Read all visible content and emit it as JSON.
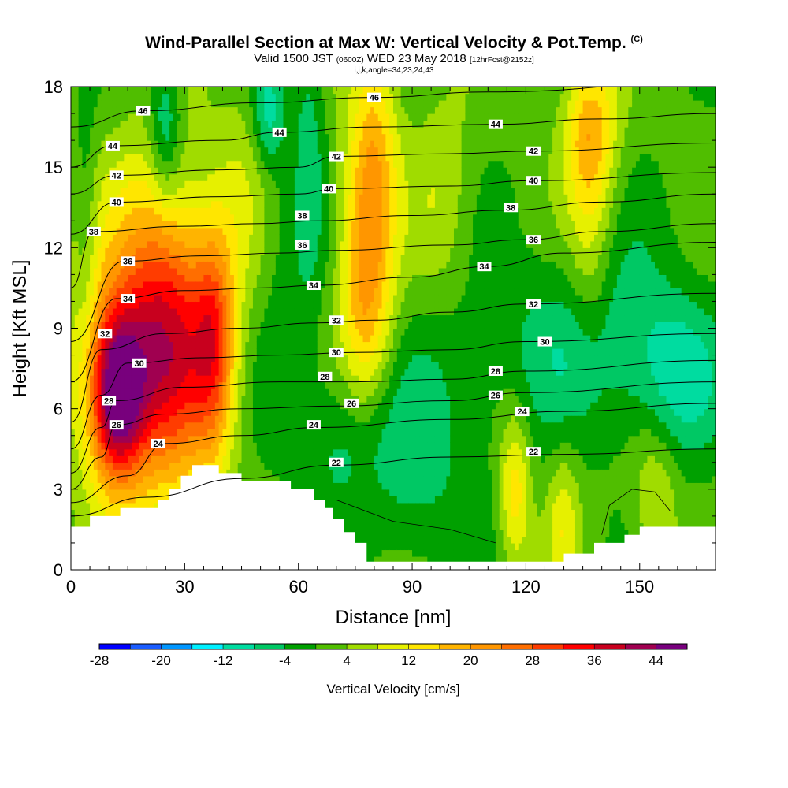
{
  "title": {
    "main": "Wind-Parallel Section at Max W: Vertical Velocity & Pot.Temp.",
    "copyright": "(C)",
    "valid_prefix": "Valid 1500 JST",
    "utc": "(0600Z)",
    "valid_date": "WED 23 May 2018",
    "forecast": "[12hrFcst@2152z]",
    "indices": "i,j,k,angle=34,23,24,43"
  },
  "chart_data": {
    "type": "heatmap",
    "xlabel": "Distance [nm]",
    "ylabel": "Height [Kft MSL]",
    "xlim": [
      0,
      170
    ],
    "ylim": [
      0,
      18
    ],
    "xticks": [
      0,
      30,
      60,
      90,
      120,
      150
    ],
    "yticks": [
      0,
      3,
      6,
      9,
      12,
      15,
      18
    ],
    "colorbar": {
      "label": "Vertical Velocity [cm/s]",
      "levels": [
        -28,
        -24,
        -20,
        -16,
        -12,
        -8,
        -4,
        0,
        4,
        8,
        12,
        16,
        20,
        24,
        28,
        32,
        36,
        40,
        44,
        48
      ],
      "tick_labels": [
        "-28",
        "-20",
        "-12",
        "-4",
        "4",
        "12",
        "20",
        "28",
        "36",
        "44"
      ],
      "colors": [
        "#0000ff",
        "#1a5cff",
        "#0096ff",
        "#00f0ff",
        "#00dca0",
        "#00c864",
        "#00a000",
        "#50be00",
        "#a0dc00",
        "#e6f000",
        "#ffe600",
        "#ffb400",
        "#ff9600",
        "#ff6e00",
        "#ff3c00",
        "#ff0000",
        "#c8001e",
        "#a00050",
        "#78007d"
      ]
    },
    "terrain": [
      [
        0,
        1.6
      ],
      [
        5,
        1.6
      ],
      [
        5,
        2.0
      ],
      [
        13,
        2.0
      ],
      [
        13,
        2.3
      ],
      [
        23,
        2.3
      ],
      [
        23,
        2.6
      ],
      [
        26,
        2.6
      ],
      [
        26,
        3.0
      ],
      [
        29,
        3.0
      ],
      [
        29,
        3.5
      ],
      [
        32,
        3.5
      ],
      [
        32,
        3.9
      ],
      [
        39,
        3.9
      ],
      [
        39,
        3.6
      ],
      [
        45,
        3.6
      ],
      [
        45,
        3.3
      ],
      [
        58,
        3.3
      ],
      [
        58,
        3.0
      ],
      [
        64,
        3.0
      ],
      [
        64,
        2.6
      ],
      [
        67,
        2.6
      ],
      [
        67,
        2.3
      ],
      [
        69,
        2.3
      ],
      [
        69,
        1.9
      ],
      [
        72,
        1.9
      ],
      [
        72,
        1.4
      ],
      [
        75,
        1.4
      ],
      [
        75,
        1.0
      ],
      [
        78,
        1.0
      ],
      [
        78,
        0.3
      ],
      [
        130,
        0.3
      ],
      [
        130,
        0.6
      ],
      [
        138,
        0.6
      ],
      [
        138,
        1.0
      ],
      [
        146,
        1.0
      ],
      [
        146,
        1.3
      ],
      [
        150,
        1.3
      ],
      [
        150,
        1.6
      ],
      [
        170,
        1.6
      ]
    ],
    "w_field": [
      {
        "x": 12,
        "y": 6.5,
        "w": 38,
        "sx": 5,
        "sy": 2.2
      },
      {
        "x": 17,
        "y": 8,
        "w": 16,
        "sx": 12,
        "sy": 4
      },
      {
        "x": 27,
        "y": 8,
        "w": 18,
        "sx": 8,
        "sy": 3.5
      },
      {
        "x": 38,
        "y": 8.5,
        "w": 22,
        "sx": 4,
        "sy": 3
      },
      {
        "x": 24,
        "y": 11,
        "w": 9,
        "sx": 8,
        "sy": 4
      },
      {
        "x": 78,
        "y": 11.5,
        "w": 22,
        "sx": 5,
        "sy": 4
      },
      {
        "x": 81,
        "y": 16.5,
        "w": 8,
        "sx": 4,
        "sy": 2.5
      },
      {
        "x": 137,
        "y": 16.5,
        "w": 16,
        "sx": 5,
        "sy": 2
      },
      {
        "x": 117,
        "y": 3,
        "w": 14,
        "sx": 3,
        "sy": 2
      },
      {
        "x": 130,
        "y": 1.8,
        "w": 9,
        "sx": 3,
        "sy": 2
      },
      {
        "x": 154,
        "y": 2.5,
        "w": 8,
        "sx": 4,
        "sy": 2
      },
      {
        "x": 98,
        "y": 14,
        "w": 6,
        "sx": 6,
        "sy": 3
      },
      {
        "x": 137,
        "y": 12,
        "w": 8,
        "sx": 4,
        "sy": 3
      },
      {
        "x": 45,
        "y": 14.5,
        "w": 5,
        "sx": 5,
        "sy": 3
      },
      {
        "x": 140,
        "y": 8.5,
        "w": -9,
        "sx": 18,
        "sy": 2.5
      },
      {
        "x": 160,
        "y": 7,
        "w": -8,
        "sx": 8,
        "sy": 2
      },
      {
        "x": 74,
        "y": 5,
        "w": -9,
        "sx": 9,
        "sy": 2
      },
      {
        "x": 100,
        "y": 6,
        "w": -5,
        "sx": 12,
        "sy": 3
      },
      {
        "x": 25,
        "y": 16.5,
        "w": -12,
        "sx": 3,
        "sy": 2
      },
      {
        "x": 52,
        "y": 17,
        "w": -10,
        "sx": 3,
        "sy": 1.5
      },
      {
        "x": 63,
        "y": 16,
        "w": -6,
        "sx": 3,
        "sy": 4
      },
      {
        "x": 4,
        "y": 13,
        "w": -5,
        "sx": 2,
        "sy": 4
      },
      {
        "x": 90,
        "y": 2,
        "w": -4,
        "sx": 8,
        "sy": 2
      },
      {
        "x": 57,
        "y": 11,
        "w": -4,
        "sx": 5,
        "sy": 4
      }
    ],
    "theta_contours": [
      {
        "label": "22",
        "points": [
          [
            0,
            2.0
          ],
          [
            20,
            2.7
          ],
          [
            45,
            3.4
          ],
          [
            70,
            3.9
          ],
          [
            100,
            4.2
          ],
          [
            130,
            4.3
          ],
          [
            170,
            4.5
          ]
        ],
        "label_at": [
          70,
          4.0
        ]
      },
      {
        "label": "24",
        "points": [
          [
            0,
            2.5
          ],
          [
            15,
            3.5
          ],
          [
            25,
            4.7
          ],
          [
            45,
            5.0
          ],
          [
            65,
            5.3
          ],
          [
            100,
            5.6
          ],
          [
            130,
            5.9
          ],
          [
            170,
            6.2
          ]
        ],
        "label_at": [
          23,
          4.7
        ]
      },
      {
        "label": "26",
        "points": [
          [
            0,
            3.0
          ],
          [
            8,
            4.2
          ],
          [
            12,
            5.4
          ],
          [
            25,
            5.8
          ],
          [
            45,
            6.0
          ],
          [
            70,
            6.1
          ],
          [
            100,
            6.3
          ],
          [
            120,
            6.6
          ],
          [
            170,
            7.0
          ]
        ],
        "label_at": [
          12,
          5.4
        ]
      },
      {
        "label": "28",
        "points": [
          [
            0,
            3.6
          ],
          [
            8,
            5.3
          ],
          [
            12,
            6.3
          ],
          [
            30,
            6.8
          ],
          [
            55,
            7.0
          ],
          [
            75,
            7.0
          ],
          [
            100,
            7.1
          ],
          [
            120,
            7.4
          ],
          [
            170,
            7.8
          ]
        ],
        "label_at": [
          10,
          6.3
        ]
      },
      {
        "label": "30",
        "points": [
          [
            0,
            4.5
          ],
          [
            8,
            6.5
          ],
          [
            15,
            7.7
          ],
          [
            35,
            7.9
          ],
          [
            55,
            8.0
          ],
          [
            75,
            8.1
          ],
          [
            100,
            8.2
          ],
          [
            120,
            8.5
          ],
          [
            170,
            8.8
          ]
        ],
        "label_at": [
          18,
          7.7
        ]
      },
      {
        "label": "32",
        "points": [
          [
            0,
            5.5
          ],
          [
            8,
            8.2
          ],
          [
            25,
            8.8
          ],
          [
            45,
            9.0
          ],
          [
            65,
            9.2
          ],
          [
            80,
            9.3
          ],
          [
            100,
            9.6
          ],
          [
            120,
            9.9
          ],
          [
            170,
            10.3
          ]
        ],
        "label_at": [
          9,
          8.8
        ]
      },
      {
        "label": "34",
        "points": [
          [
            0,
            7.0
          ],
          [
            12,
            10.1
          ],
          [
            30,
            10.4
          ],
          [
            50,
            10.5
          ],
          [
            65,
            10.6
          ],
          [
            90,
            10.9
          ],
          [
            110,
            11.3
          ],
          [
            130,
            11.8
          ],
          [
            170,
            12.2
          ]
        ],
        "label_at": [
          15,
          10.1
        ]
      },
      {
        "label": "36",
        "points": [
          [
            0,
            8.5
          ],
          [
            14,
            11.5
          ],
          [
            35,
            11.7
          ],
          [
            55,
            11.8
          ],
          [
            70,
            11.9
          ],
          [
            100,
            12.1
          ],
          [
            120,
            12.3
          ],
          [
            140,
            12.6
          ],
          [
            170,
            12.9
          ]
        ],
        "label_at": [
          15,
          11.5
        ]
      },
      {
        "label": "38",
        "points": [
          [
            0,
            10.5
          ],
          [
            6,
            12.6
          ],
          [
            30,
            12.8
          ],
          [
            50,
            12.9
          ],
          [
            65,
            13.0
          ],
          [
            90,
            13.2
          ],
          [
            115,
            13.4
          ],
          [
            140,
            13.7
          ],
          [
            170,
            14.0
          ]
        ],
        "label_at": [
          6,
          12.6
        ]
      },
      {
        "label": "40",
        "points": [
          [
            0,
            12.5
          ],
          [
            12,
            13.7
          ],
          [
            40,
            13.9
          ],
          [
            60,
            14.0
          ],
          [
            70,
            14.2
          ],
          [
            100,
            14.3
          ],
          [
            122,
            14.5
          ],
          [
            170,
            14.8
          ]
        ],
        "label_at": [
          12,
          13.7
        ]
      },
      {
        "label": "42",
        "points": [
          [
            0,
            14.0
          ],
          [
            12,
            14.7
          ],
          [
            40,
            14.9
          ],
          [
            60,
            15.0
          ],
          [
            70,
            15.4
          ],
          [
            100,
            15.5
          ],
          [
            122,
            15.6
          ],
          [
            170,
            15.9
          ]
        ],
        "label_at": [
          12,
          14.7
        ]
      },
      {
        "label": "44",
        "points": [
          [
            0,
            15.0
          ],
          [
            11,
            15.8
          ],
          [
            40,
            16.0
          ],
          [
            55,
            16.3
          ],
          [
            80,
            16.5
          ],
          [
            112,
            16.6
          ],
          [
            140,
            16.8
          ],
          [
            170,
            17.0
          ]
        ],
        "label_at": [
          11,
          15.8
        ]
      },
      {
        "label": "46",
        "points": [
          [
            0,
            16.5
          ],
          [
            19,
            17.1
          ],
          [
            50,
            17.4
          ],
          [
            80,
            17.6
          ],
          [
            110,
            17.8
          ],
          [
            170,
            18.2
          ]
        ],
        "label_at": [
          19,
          17.1
        ]
      }
    ],
    "theta_labels_extra": [
      {
        "label": "44",
        "at": [
          55,
          16.3
        ]
      },
      {
        "label": "46",
        "at": [
          80,
          17.6
        ]
      },
      {
        "label": "44",
        "at": [
          112,
          16.6
        ]
      },
      {
        "label": "42",
        "at": [
          70,
          15.4
        ]
      },
      {
        "label": "42",
        "at": [
          122,
          15.6
        ]
      },
      {
        "label": "40",
        "at": [
          68,
          14.2
        ]
      },
      {
        "label": "40",
        "at": [
          122,
          14.5
        ]
      },
      {
        "label": "38",
        "at": [
          61,
          13.2
        ]
      },
      {
        "label": "38",
        "at": [
          116,
          13.5
        ]
      },
      {
        "label": "36",
        "at": [
          61,
          12.1
        ]
      },
      {
        "label": "36",
        "at": [
          122,
          12.3
        ]
      },
      {
        "label": "34",
        "at": [
          64,
          10.6
        ]
      },
      {
        "label": "34",
        "at": [
          109,
          11.3
        ]
      },
      {
        "label": "32",
        "at": [
          70,
          9.3
        ]
      },
      {
        "label": "32",
        "at": [
          122,
          9.9
        ]
      },
      {
        "label": "30",
        "at": [
          70,
          8.1
        ]
      },
      {
        "label": "30",
        "at": [
          125,
          8.5
        ]
      },
      {
        "label": "28",
        "at": [
          67,
          7.2
        ]
      },
      {
        "label": "28",
        "at": [
          112,
          7.4
        ]
      },
      {
        "label": "26",
        "at": [
          74,
          6.2
        ]
      },
      {
        "label": "26",
        "at": [
          112,
          6.5
        ]
      },
      {
        "label": "24",
        "at": [
          64,
          5.4
        ]
      },
      {
        "label": "24",
        "at": [
          119,
          5.9
        ]
      },
      {
        "label": "22",
        "at": [
          122,
          4.4
        ]
      }
    ]
  }
}
